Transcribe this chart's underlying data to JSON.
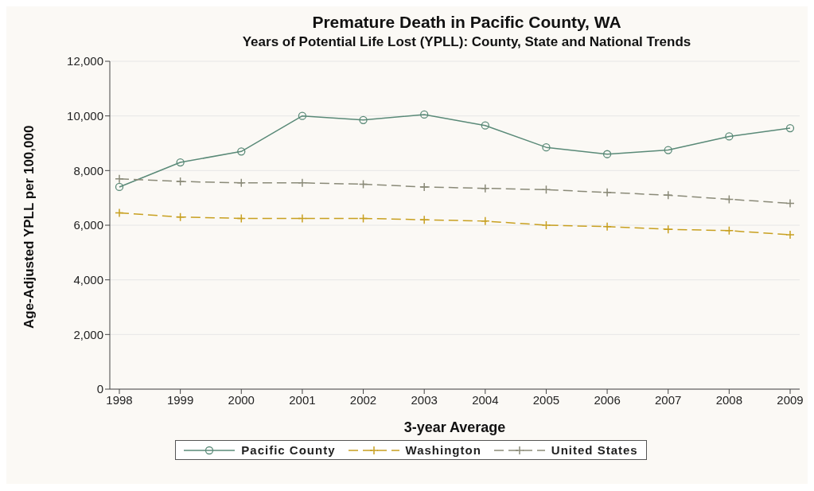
{
  "chart_data": {
    "type": "line",
    "title": "Premature Death in Pacific County, WA",
    "subtitle": "Years of Potential Life Lost (YPLL): County, State and National Trends",
    "xlabel": "3-year Average",
    "ylabel": "Age-Adjusted YPLL per 100,000",
    "categories": [
      "1998",
      "1999",
      "2000",
      "2001",
      "2002",
      "2003",
      "2004",
      "2005",
      "2006",
      "2007",
      "2008",
      "2009"
    ],
    "series": [
      {
        "name": "Pacific County",
        "color": "#5a8a78",
        "marker": "circle",
        "line_style": "solid",
        "values": [
          7400,
          8300,
          8700,
          10000,
          9850,
          10050,
          9650,
          8850,
          8600,
          8750,
          9250,
          9550
        ]
      },
      {
        "name": "Washington",
        "color": "#c8a020",
        "marker": "cross",
        "line_style": "dashed",
        "values": [
          6450,
          6300,
          6250,
          6250,
          6250,
          6200,
          6150,
          6000,
          5950,
          5850,
          5800,
          5650
        ]
      },
      {
        "name": "United States",
        "color": "#8a8a78",
        "marker": "cross",
        "line_style": "dashed",
        "values": [
          7700,
          7600,
          7550,
          7550,
          7500,
          7400,
          7350,
          7300,
          7200,
          7100,
          6950,
          6800
        ]
      }
    ],
    "ylim": [
      0,
      12000
    ],
    "yticks": [
      {
        "value": 0,
        "label": "0"
      },
      {
        "value": 2000,
        "label": "2,000"
      },
      {
        "value": 4000,
        "label": "4,000"
      },
      {
        "value": 6000,
        "label": "6,000"
      },
      {
        "value": 8000,
        "label": "8,000"
      },
      {
        "value": 10000,
        "label": "10,000"
      },
      {
        "value": 12000,
        "label": "12,000"
      }
    ],
    "grid": "y",
    "legend": "bottom"
  }
}
